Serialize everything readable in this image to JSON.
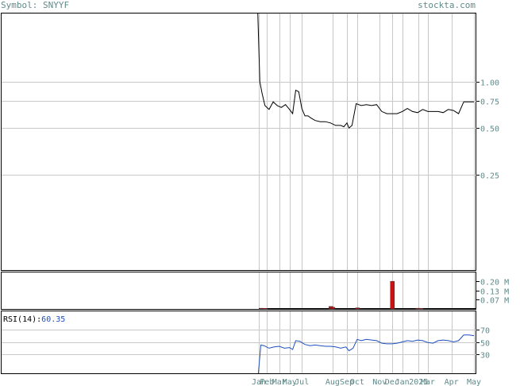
{
  "header": {
    "symbol_label": "Symbol: SNYYF",
    "site_label": "stockta.com"
  },
  "rsi_indicator": {
    "label": "RSI(14):",
    "value": "60.35"
  },
  "colors": {
    "price_line": "#000000",
    "volume_bar": "#cc1111",
    "rsi_line": "#1f4fbf",
    "grid": "#c8c8c8",
    "axis_text": "#5f8a8a"
  },
  "chart_data": [
    {
      "type": "line",
      "panel": "price",
      "yscale": "log",
      "ylim": [
        0.06,
        2.8
      ],
      "ytick_labels": [
        "1.00",
        "0.75",
        "0.50",
        "0.25"
      ],
      "yticks": [
        1.0,
        0.75,
        0.5,
        0.25
      ],
      "xtick_labels": [
        "Jan",
        "Feb",
        "Mar",
        "May",
        "Jul",
        "Aug",
        "Sep",
        "Oct",
        "Nov",
        "Dec",
        "Jan",
        "2025",
        "Mar",
        "Apr",
        "May"
      ],
      "xticks": [
        0.0,
        0.8,
        2.0,
        3.0,
        4.2,
        7.2,
        8.6,
        9.6,
        11.8,
        13.0,
        14.0,
        15.6,
        16.5,
        18.8,
        21.0
      ],
      "series": [
        {
          "x": [
            -0.1,
            0.1,
            0.3,
            0.6,
            1.0,
            1.4,
            1.8,
            2.2,
            2.6,
            3.0,
            3.3,
            3.6,
            3.9,
            4.2,
            4.5,
            4.8,
            5.1,
            5.5,
            6.0,
            6.5,
            7.0,
            7.5,
            8.0,
            8.3,
            8.6,
            8.8,
            9.1,
            9.5,
            10.0,
            10.5,
            11.0,
            11.5,
            12.0,
            12.5,
            13.0,
            13.5,
            14.0,
            14.5,
            15.0,
            15.5,
            16.0,
            16.5,
            17.0,
            17.5,
            18.0,
            18.5,
            19.0,
            19.5,
            20.0,
            20.5,
            21.0
          ],
          "y": [
            2.8,
            1.0,
            0.85,
            0.7,
            0.66,
            0.74,
            0.7,
            0.68,
            0.71,
            0.66,
            0.62,
            0.88,
            0.86,
            0.67,
            0.6,
            0.6,
            0.58,
            0.56,
            0.55,
            0.55,
            0.54,
            0.52,
            0.52,
            0.51,
            0.54,
            0.5,
            0.52,
            0.72,
            0.7,
            0.71,
            0.7,
            0.71,
            0.64,
            0.62,
            0.62,
            0.62,
            0.64,
            0.67,
            0.64,
            0.63,
            0.66,
            0.64,
            0.64,
            0.64,
            0.63,
            0.66,
            0.65,
            0.62,
            0.74,
            0.74,
            0.74
          ]
        }
      ]
    },
    {
      "type": "bar",
      "panel": "volume",
      "ylim": [
        0,
        0.27
      ],
      "ytick_labels": [
        "0.20 M",
        "0.13 M",
        "0.07 M"
      ],
      "yticks": [
        0.2,
        0.13,
        0.07
      ],
      "series": [
        {
          "x": [
            0.2,
            0.6,
            7.0,
            7.2,
            9.6,
            13.0,
            15.5,
            15.8
          ],
          "values": [
            0.005,
            0.004,
            0.018,
            0.012,
            0.008,
            0.2,
            0.005,
            0.004
          ]
        }
      ]
    },
    {
      "type": "line",
      "panel": "rsi",
      "ylim": [
        0,
        100
      ],
      "ytick_labels": [
        "70",
        "50",
        "30"
      ],
      "yticks": [
        70,
        50,
        30
      ],
      "series": [
        {
          "name": "RSI(14)",
          "x": [
            -0.05,
            0.2,
            0.5,
            1.0,
            1.5,
            2.0,
            2.5,
            3.0,
            3.3,
            3.6,
            4.0,
            4.5,
            5.0,
            5.5,
            6.0,
            6.5,
            7.0,
            7.5,
            8.0,
            8.5,
            8.8,
            9.2,
            9.6,
            10.0,
            10.5,
            11.0,
            11.5,
            12.0,
            12.5,
            13.0,
            13.5,
            14.0,
            14.5,
            15.0,
            15.5,
            16.0,
            16.5,
            17.0,
            17.5,
            18.0,
            18.5,
            19.0,
            19.5,
            20.0,
            20.5,
            21.0
          ],
          "y": [
            0,
            45,
            44,
            40,
            42,
            43,
            40,
            41,
            38,
            52,
            51,
            46,
            44,
            45,
            44,
            43,
            43,
            42,
            40,
            42,
            36,
            40,
            54,
            52,
            54,
            53,
            52,
            48,
            47,
            47,
            48,
            50,
            52,
            51,
            53,
            52,
            49,
            48,
            52,
            53,
            52,
            50,
            52,
            61,
            61,
            60
          ]
        }
      ]
    }
  ]
}
